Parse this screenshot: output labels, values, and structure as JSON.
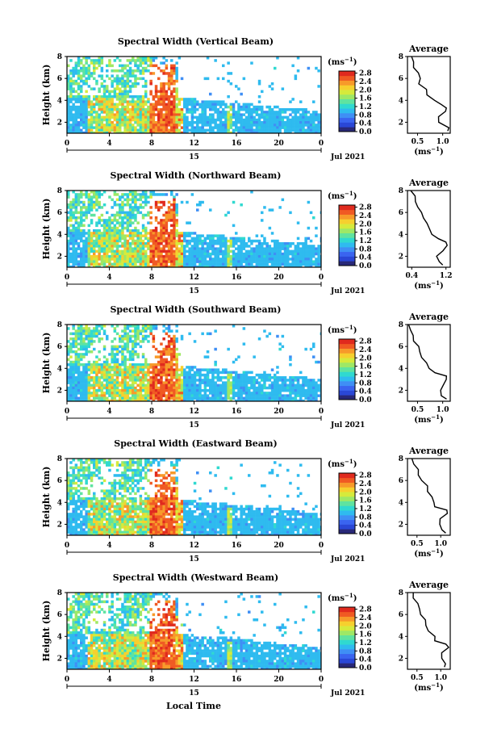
{
  "figure": {
    "xlabel": "Local Time",
    "time_ticks": [
      "0",
      "4",
      "8",
      "12",
      "16",
      "20",
      "0"
    ],
    "date_label": "15",
    "date_right": "Jul 2021",
    "ylabel": "Height (km)",
    "unit_label": "(ms",
    "unit_sup": "−1",
    "unit_close": ")",
    "colorbar_ticks": [
      "2.8",
      "2.4",
      "2.0",
      "1.6",
      "1.2",
      "0.8",
      "0.4",
      "0.0"
    ],
    "average_title": "Average",
    "average_unit": "(ms",
    "average_unit_sup": "−1",
    "average_unit_close": ")",
    "colors": [
      "#282878",
      "#2a47d6",
      "#3a64f0",
      "#3f8ff5",
      "#2fbbef",
      "#30d9d0",
      "#5fe3a0",
      "#9ee866",
      "#d6ea3c",
      "#f6d02e",
      "#f79a2a",
      "#f05a23",
      "#e02a1e"
    ]
  },
  "chart_data": [
    {
      "type": "heatmap",
      "title": "Spectral Width (Vertical Beam)",
      "x": {
        "range": [
          0,
          24
        ],
        "unit": "hour"
      },
      "y": {
        "range": [
          1,
          8
        ],
        "ticks": [
          2,
          4,
          6,
          8
        ]
      },
      "colorbar": {
        "range": [
          0,
          2.9
        ],
        "ticks": [
          0.0,
          0.4,
          0.8,
          1.2,
          1.6,
          2.0,
          2.4,
          2.8
        ]
      },
      "average_profile": {
        "xticks": [
          "0.5",
          "1.0"
        ],
        "xrange": [
          0.3,
          1.15
        ],
        "yrange": [
          1,
          8
        ],
        "height": [
          1.2,
          1.5,
          2.0,
          2.5,
          3.0,
          3.3,
          3.6,
          4.0,
          4.5,
          5.0,
          5.5,
          6.0,
          6.5,
          7.0,
          7.5,
          8.0
        ],
        "width": [
          1.1,
          1.1,
          0.95,
          0.9,
          1.05,
          1.1,
          0.95,
          0.85,
          0.7,
          0.65,
          0.55,
          0.55,
          0.5,
          0.45,
          0.4,
          0.38
        ]
      }
    },
    {
      "type": "heatmap",
      "title": "Spectral Width (Northward Beam)",
      "x": {
        "range": [
          0,
          24
        ],
        "unit": "hour"
      },
      "y": {
        "range": [
          1,
          8
        ],
        "ticks": [
          2,
          4,
          6,
          8
        ]
      },
      "colorbar": {
        "range": [
          0,
          2.9
        ],
        "ticks": [
          0.0,
          0.4,
          0.8,
          1.2,
          1.6,
          2.0,
          2.4,
          2.8
        ]
      },
      "average_profile": {
        "xticks": [
          "0.4",
          "1.2"
        ],
        "xrange": [
          0.3,
          1.3
        ],
        "yrange": [
          1,
          8
        ],
        "height": [
          1.2,
          1.5,
          2.0,
          2.5,
          3.0,
          3.3,
          3.6,
          4.0,
          4.5,
          5.0,
          5.5,
          6.0,
          6.5,
          7.0,
          7.5,
          8.0
        ],
        "width": [
          1.1,
          1.05,
          1.0,
          1.1,
          1.25,
          1.2,
          1.0,
          0.9,
          0.8,
          0.75,
          0.7,
          0.6,
          0.55,
          0.5,
          0.45,
          0.4
        ]
      }
    },
    {
      "type": "heatmap",
      "title": "Spectral Width (Southward Beam)",
      "x": {
        "range": [
          0,
          24
        ],
        "unit": "hour"
      },
      "y": {
        "range": [
          1,
          8
        ],
        "ticks": [
          2,
          4,
          6,
          8
        ]
      },
      "colorbar": {
        "range": [
          0,
          2.9
        ],
        "ticks": [
          0.0,
          0.4,
          0.8,
          1.2,
          1.6,
          2.0,
          2.4,
          2.8
        ]
      },
      "average_profile": {
        "xticks": [
          "0.5",
          "1.0"
        ],
        "xrange": [
          0.3,
          1.15
        ],
        "yrange": [
          1,
          8
        ],
        "height": [
          1.2,
          1.5,
          2.0,
          2.5,
          3.0,
          3.3,
          3.6,
          4.0,
          4.5,
          5.0,
          5.5,
          6.0,
          6.5,
          7.0,
          7.5,
          8.0
        ],
        "width": [
          1.05,
          1.0,
          0.95,
          1.0,
          1.1,
          1.05,
          0.85,
          0.75,
          0.65,
          0.6,
          0.55,
          0.5,
          0.45,
          0.4,
          0.35,
          0.35
        ]
      }
    },
    {
      "type": "heatmap",
      "title": "Spectral Width (Eastward Beam)",
      "x": {
        "range": [
          0,
          24
        ],
        "unit": "hour"
      },
      "y": {
        "range": [
          1,
          8
        ],
        "ticks": [
          2,
          4,
          6,
          8
        ]
      },
      "colorbar": {
        "range": [
          0,
          2.9
        ],
        "ticks": [
          0.0,
          0.4,
          0.8,
          1.2,
          1.6,
          2.0,
          2.4,
          2.8
        ]
      },
      "average_profile": {
        "xticks": [
          "0.5",
          "1.0"
        ],
        "xrange": [
          0.3,
          1.2
        ],
        "yrange": [
          1,
          8
        ],
        "height": [
          1.2,
          1.5,
          2.0,
          2.5,
          3.0,
          3.3,
          3.6,
          4.0,
          4.5,
          5.0,
          5.5,
          6.0,
          6.5,
          7.0,
          7.5,
          8.0
        ],
        "width": [
          1.1,
          1.05,
          0.95,
          1.0,
          1.15,
          1.1,
          0.9,
          0.85,
          0.8,
          0.75,
          0.7,
          0.6,
          0.55,
          0.5,
          0.45,
          0.4
        ]
      }
    },
    {
      "type": "heatmap",
      "title": "Spectral Width (Westward Beam)",
      "x": {
        "range": [
          0,
          24
        ],
        "unit": "hour"
      },
      "y": {
        "range": [
          1,
          8
        ],
        "ticks": [
          2,
          4,
          6,
          8
        ]
      },
      "colorbar": {
        "range": [
          0,
          2.9
        ],
        "ticks": [
          0.0,
          0.4,
          0.8,
          1.2,
          1.6,
          2.0,
          2.4,
          2.8
        ]
      },
      "average_profile": {
        "xticks": [
          "0.5",
          "1.0"
        ],
        "xrange": [
          0.3,
          1.2
        ],
        "yrange": [
          1,
          8
        ],
        "height": [
          1.2,
          1.5,
          2.0,
          2.5,
          3.0,
          3.3,
          3.6,
          4.0,
          4.5,
          5.0,
          5.5,
          6.0,
          6.5,
          7.0,
          7.5,
          8.0
        ],
        "width": [
          1.1,
          1.1,
          1.0,
          1.05,
          1.15,
          1.1,
          0.9,
          0.85,
          0.75,
          0.7,
          0.65,
          0.6,
          0.55,
          0.5,
          0.45,
          0.4
        ]
      }
    }
  ]
}
